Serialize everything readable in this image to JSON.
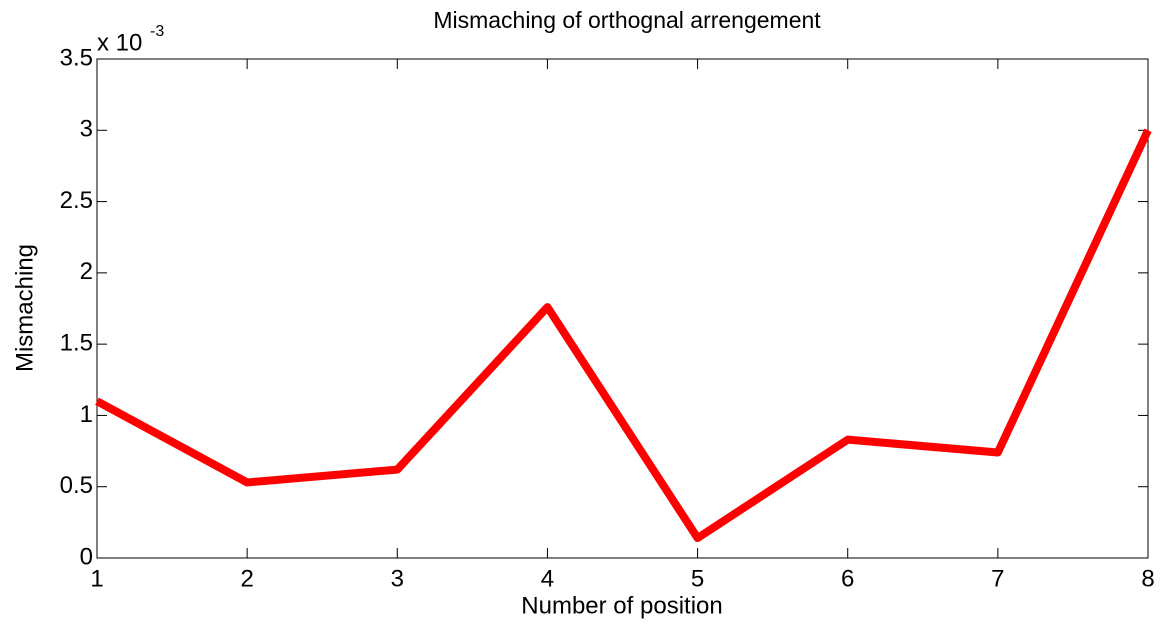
{
  "chart_data": {
    "type": "line",
    "title": "Mismaching of orthognal arrengement",
    "xlabel": "Number of position",
    "ylabel": "Mismaching",
    "y_multiplier": {
      "base": "x 10",
      "exponent": "-3"
    },
    "x": [
      1,
      2,
      3,
      4,
      5,
      6,
      7,
      8
    ],
    "series": [
      {
        "color": "#ff0000",
        "values": [
          1.1,
          0.53,
          0.62,
          1.76,
          0.14,
          0.83,
          0.74,
          3.0
        ]
      }
    ],
    "xlim": [
      1,
      8
    ],
    "xticks": [
      1,
      2,
      3,
      4,
      5,
      6,
      7,
      8
    ],
    "ylim": [
      0,
      3.5
    ],
    "yticks": [
      0,
      0.5,
      1,
      1.5,
      2,
      2.5,
      3,
      3.5
    ]
  }
}
